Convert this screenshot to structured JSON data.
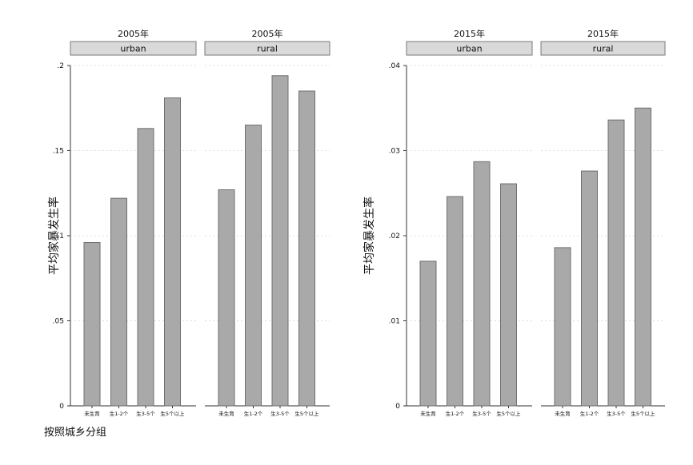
{
  "chart_data": [
    {
      "type": "bar",
      "ylabel": "平均家暴发生率",
      "ylim": [
        0,
        0.2
      ],
      "yticks": [
        0,
        0.05,
        0.1,
        0.15,
        0.2
      ],
      "ytick_labels": [
        "0",
        ".05",
        ".1",
        ".15",
        ".2"
      ],
      "categories": [
        "未生育",
        "生1-2个",
        "生3-5个",
        "生5个以上"
      ],
      "grid": true,
      "bar_color": "#a9a9a9",
      "panels": [
        {
          "year": "2005年",
          "label": "urban",
          "values": [
            0.096,
            0.122,
            0.163,
            0.181
          ]
        },
        {
          "year": "2005年",
          "label": "rural",
          "values": [
            0.127,
            0.165,
            0.194,
            0.185
          ]
        }
      ]
    },
    {
      "type": "bar",
      "ylabel": "平均家暴发生率",
      "ylim": [
        0,
        0.04
      ],
      "yticks": [
        0,
        0.01,
        0.02,
        0.03,
        0.04
      ],
      "ytick_labels": [
        "0",
        ".01",
        ".02",
        ".03",
        ".04"
      ],
      "categories": [
        "未生育",
        "生1-2个",
        "生3-5个",
        "生5个以上"
      ],
      "grid": true,
      "bar_color": "#a9a9a9",
      "panels": [
        {
          "year": "2015年",
          "label": "urban",
          "values": [
            0.017,
            0.0246,
            0.0287,
            0.0261
          ]
        },
        {
          "year": "2015年",
          "label": "rural",
          "values": [
            0.0186,
            0.0276,
            0.0336,
            0.035
          ]
        }
      ]
    }
  ],
  "note": "按照城乡分组",
  "colors": {
    "bar_fill": "#a9a9a9",
    "bar_stroke": "#6f6f6f",
    "header_fill": "#d9d9d9",
    "header_stroke": "#7a7a7a",
    "grid": "#dcdcdc"
  }
}
